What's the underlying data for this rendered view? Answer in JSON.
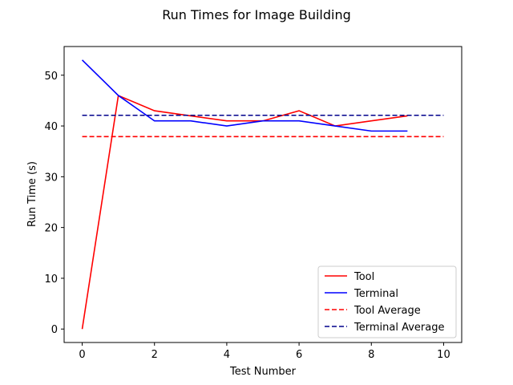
{
  "chart_data": {
    "type": "line",
    "title": "Run Times for Image Building",
    "xlabel": "Test Number",
    "ylabel": "Run Time (s)",
    "xlim": [
      -0.5,
      10.5
    ],
    "ylim": [
      -2.65,
      55.65
    ],
    "xticks": [
      0,
      2,
      4,
      6,
      8,
      10
    ],
    "yticks": [
      0,
      10,
      20,
      30,
      40,
      50
    ],
    "grid": false,
    "legend_position": "lower-right",
    "series": [
      {
        "name": "Tool",
        "style": "solid",
        "color": "#ff0000",
        "x": [
          0,
          1,
          2,
          3,
          4,
          5,
          6,
          7,
          8,
          9
        ],
        "y": [
          0,
          46,
          43,
          42,
          41,
          41,
          43,
          40,
          41,
          42
        ]
      },
      {
        "name": "Terminal",
        "style": "solid",
        "color": "#0000ff",
        "x": [
          0,
          1,
          2,
          3,
          4,
          5,
          6,
          7,
          8,
          9
        ],
        "y": [
          53,
          46,
          41,
          41,
          40,
          41,
          41,
          40,
          39,
          39
        ]
      },
      {
        "name": "Tool Average",
        "style": "dashed",
        "color": "#ff0000",
        "x": [
          0,
          10
        ],
        "y": [
          37.9,
          37.9
        ]
      },
      {
        "name": "Terminal Average",
        "style": "dashed",
        "color": "#00008b",
        "x": [
          0,
          10
        ],
        "y": [
          42.1,
          42.1
        ]
      }
    ]
  }
}
